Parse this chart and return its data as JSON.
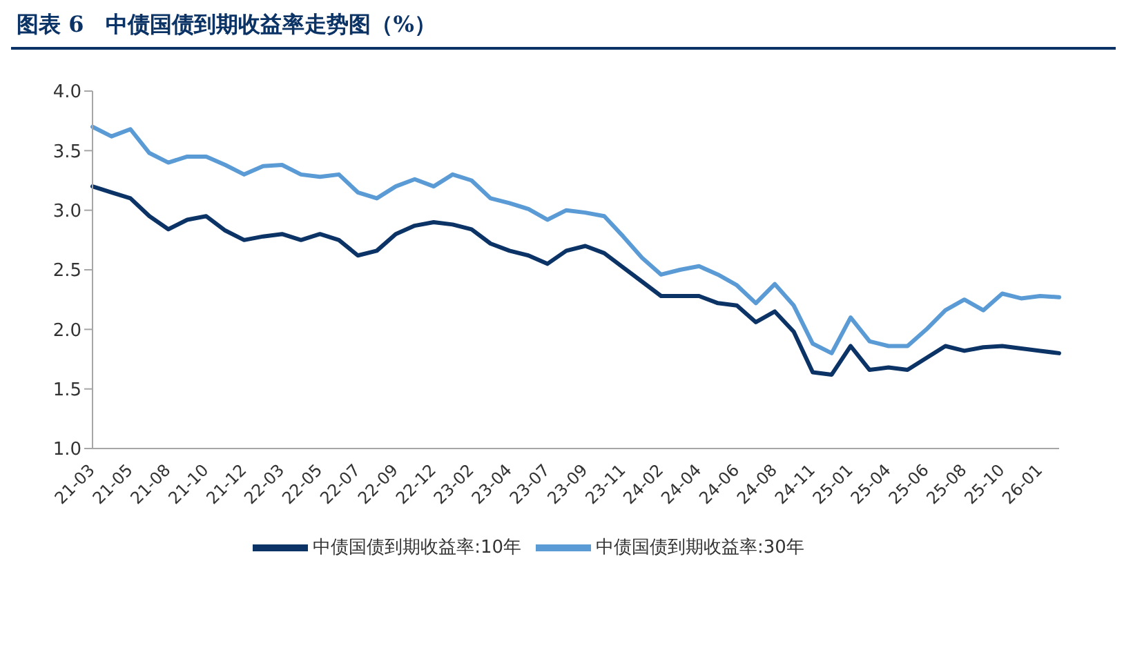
{
  "chart_data": {
    "type": "line",
    "title": "图表 6　中债国债到期收益率走势图（%）",
    "categories": [
      "21-03",
      null,
      "21-05",
      null,
      "21-08",
      null,
      "21-10",
      null,
      "21-12",
      null,
      "22-03",
      null,
      "22-05",
      null,
      "22-07",
      null,
      "22-09",
      null,
      "22-12",
      null,
      "23-02",
      null,
      "23-04",
      null,
      "23-07",
      null,
      "23-09",
      null,
      "23-11",
      null,
      "24-02",
      null,
      "24-04",
      null,
      "24-06",
      null,
      "24-08",
      null,
      "24-11",
      null,
      "25-01",
      null,
      "25-04",
      null,
      "25-06",
      null,
      "25-08",
      null,
      "25-10",
      null,
      "26-01",
      null
    ],
    "series": [
      {
        "name": "中债国债到期收益率:10年",
        "color": "#0b3366",
        "values": [
          3.2,
          3.15,
          3.1,
          2.95,
          2.84,
          2.92,
          2.95,
          2.83,
          2.75,
          2.78,
          2.8,
          2.75,
          2.8,
          2.75,
          2.62,
          2.66,
          2.8,
          2.87,
          2.9,
          2.88,
          2.84,
          2.72,
          2.66,
          2.62,
          2.55,
          2.66,
          2.7,
          2.64,
          2.52,
          2.4,
          2.28,
          2.28,
          2.28,
          2.22,
          2.2,
          2.06,
          2.15,
          1.98,
          1.64,
          1.62,
          1.86,
          1.66,
          1.68,
          1.66,
          1.76,
          1.86,
          1.82,
          1.85,
          1.86,
          1.84,
          1.82,
          1.8
        ]
      },
      {
        "name": "中债国债到期收益率:30年",
        "color": "#5b9bd5",
        "values": [
          3.7,
          3.62,
          3.68,
          3.48,
          3.4,
          3.45,
          3.45,
          3.38,
          3.3,
          3.37,
          3.38,
          3.3,
          3.28,
          3.3,
          3.15,
          3.1,
          3.2,
          3.26,
          3.2,
          3.3,
          3.25,
          3.1,
          3.06,
          3.01,
          2.92,
          3.0,
          2.98,
          2.95,
          2.78,
          2.6,
          2.46,
          2.5,
          2.53,
          2.46,
          2.37,
          2.22,
          2.38,
          2.2,
          1.88,
          1.8,
          2.1,
          1.9,
          1.86,
          1.86,
          2.0,
          2.16,
          2.25,
          2.16,
          2.3,
          2.26,
          2.28,
          2.27
        ]
      }
    ],
    "ylim": [
      1,
      4
    ],
    "yticks": [
      {
        "value": 1,
        "label": "1.0"
      },
      {
        "value": 1.5,
        "label": "1.5"
      },
      {
        "value": 2,
        "label": "2.0"
      },
      {
        "value": 2.5,
        "label": "2.5"
      },
      {
        "value": 3,
        "label": "3.0"
      },
      {
        "value": 3.5,
        "label": "3.5"
      },
      {
        "value": 4,
        "label": "4.0"
      }
    ],
    "grid": false,
    "legend": "bottom",
    "marker": "none",
    "line_style": "solid"
  }
}
